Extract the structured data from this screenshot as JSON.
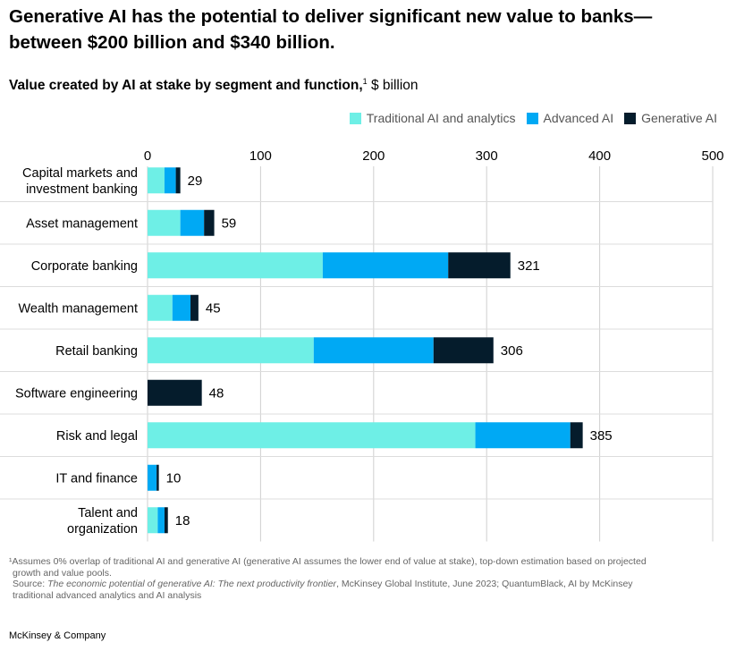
{
  "header": {
    "headline": "Generative AI has the potential to deliver significant new value to banks—between $200 billion and $340 billion.",
    "subtitle_main": "Value created by AI at stake by segment and function,",
    "subtitle_note_mark": "1",
    "subtitle_unit": " $ billion"
  },
  "chart_data": {
    "type": "bar",
    "orientation": "horizontal",
    "stacked": true,
    "title": "Value created by AI at stake by segment and function, $ billion",
    "categories": [
      "Capital markets and investment banking",
      "Asset management",
      "Corporate banking",
      "Wealth management",
      "Retail banking",
      "Software engineering",
      "Risk and legal",
      "IT and finance",
      "Talent and organization"
    ],
    "category_lines": [
      [
        "Capital markets and",
        "investment banking"
      ],
      [
        "Asset management"
      ],
      [
        "Corporate banking"
      ],
      [
        "Wealth management"
      ],
      [
        "Retail banking"
      ],
      [
        "Software engineering"
      ],
      [
        "Risk and legal"
      ],
      [
        "IT and finance"
      ],
      [
        "Talent and",
        "organization"
      ]
    ],
    "series": [
      {
        "name": "Traditional AI and analytics",
        "color": "#6EEFE6",
        "values": [
          15,
          29,
          155,
          22,
          147,
          0,
          290,
          0,
          9
        ]
      },
      {
        "name": "Advanced AI",
        "color": "#00A9F4",
        "values": [
          10,
          21,
          111,
          16,
          106,
          0,
          84,
          8,
          6
        ]
      },
      {
        "name": "Generative AI",
        "color": "#051C2C",
        "values": [
          4,
          9,
          55,
          7,
          53,
          48,
          11,
          2,
          3
        ]
      }
    ],
    "totals": [
      "29",
      "59",
      "321",
      "45",
      "306",
      "48",
      "385",
      "10",
      "18"
    ],
    "xlim": [
      0,
      500
    ],
    "x_ticks": [
      0,
      100,
      200,
      300,
      400,
      500
    ],
    "x_tick_labels": [
      "0",
      "100",
      "200",
      "300",
      "400",
      "500"
    ],
    "x_axis_position": "top",
    "grid": true,
    "legend_position": "top-right"
  },
  "legend": {
    "items": [
      {
        "label": "Traditional AI and analytics",
        "color": "#6EEFE6"
      },
      {
        "label": "Advanced AI",
        "color": "#00A9F4"
      },
      {
        "label": "Generative  AI",
        "color": "#051C2C"
      }
    ]
  },
  "footnotes": {
    "note_line1": "¹Assumes 0% overlap of traditional AI and generative AI (generative AI assumes the lower end of value at stake), top-down estimation based on projected",
    "note_line2": "growth and value pools.",
    "source_prefix": "Source: ",
    "source_title": "The economic potential of generative AI: The next productivity frontier",
    "source_rest_1": ", McKinsey Global Institute, June 2023; QuantumBlack, AI by McKinsey",
    "source_line2": "traditional advanced analytics and AI analysis"
  },
  "brand": {
    "name": "McKinsey & Company"
  }
}
